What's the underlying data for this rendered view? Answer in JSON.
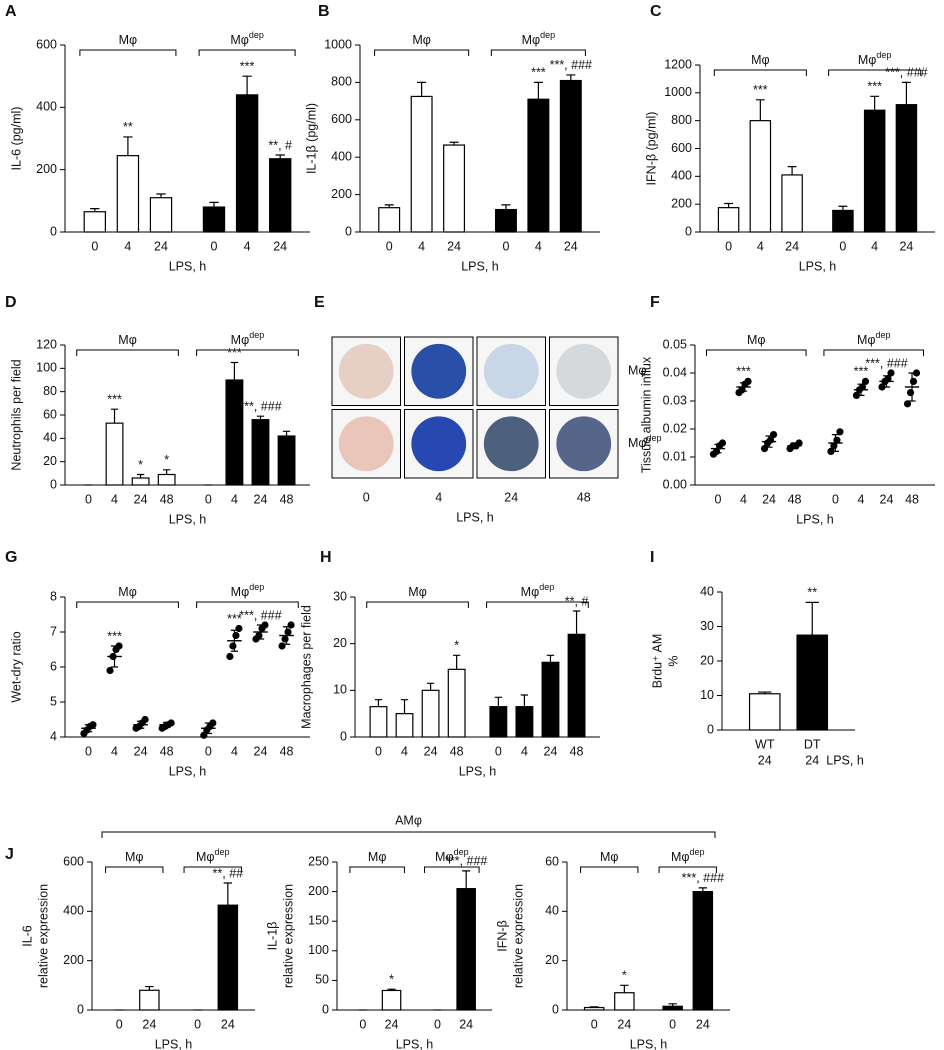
{
  "chart_data": [
    {
      "type": "bar",
      "panel": "A",
      "ylabel": "IL-6 (pg/ml)",
      "xlabel": "LPS, h",
      "ylim": [
        0,
        600
      ],
      "yticks": [
        0,
        200,
        400,
        600
      ],
      "categories": [
        "0",
        "4",
        "24"
      ],
      "series": [
        {
          "name": "Mφ",
          "color": "#ffffff",
          "values": [
            65,
            245,
            110
          ],
          "errors": [
            10,
            60,
            12
          ],
          "annotations": [
            null,
            "**",
            null
          ]
        },
        {
          "name": "Mφ",
          "name_superscript": "dep",
          "color": "#000000",
          "values": [
            80,
            440,
            235
          ],
          "errors": [
            15,
            60,
            12
          ],
          "annotations": [
            null,
            "***",
            "**, #"
          ]
        }
      ]
    },
    {
      "type": "bar",
      "panel": "B",
      "ylabel": "IL-1β (pg/ml)",
      "xlabel": "LPS, h",
      "ylim": [
        0,
        1000
      ],
      "yticks": [
        0,
        200,
        400,
        600,
        800,
        1000
      ],
      "categories": [
        "0",
        "4",
        "24"
      ],
      "series": [
        {
          "name": "Mφ",
          "color": "#ffffff",
          "values": [
            130,
            725,
            465
          ],
          "errors": [
            15,
            75,
            15
          ],
          "annotations": [
            null,
            null,
            null
          ]
        },
        {
          "name": "Mφ",
          "name_superscript": "dep",
          "color": "#000000",
          "values": [
            120,
            710,
            810
          ],
          "errors": [
            25,
            90,
            30
          ],
          "annotations": [
            null,
            "***",
            "***, ###"
          ]
        }
      ]
    },
    {
      "type": "bar",
      "panel": "C",
      "ylabel": "IFN-β (pg/ml)",
      "xlabel": "LPS, h",
      "ylim": [
        0,
        1200
      ],
      "yticks": [
        0,
        200,
        400,
        600,
        800,
        1000,
        1200
      ],
      "categories": [
        "0",
        "4",
        "24"
      ],
      "series": [
        {
          "name": "Mφ",
          "color": "#ffffff",
          "values": [
            175,
            800,
            410
          ],
          "errors": [
            30,
            150,
            60
          ],
          "annotations": [
            null,
            "***",
            null
          ]
        },
        {
          "name": "Mφ",
          "name_superscript": "dep",
          "color": "#000000",
          "values": [
            155,
            875,
            915
          ],
          "errors": [
            30,
            100,
            160
          ],
          "annotations": [
            null,
            "***",
            "***, ###"
          ]
        }
      ]
    },
    {
      "type": "bar",
      "panel": "D",
      "ylabel": "Neutrophils per field",
      "xlabel": "LPS, h",
      "ylim": [
        0,
        120
      ],
      "yticks": [
        0,
        20,
        40,
        60,
        80,
        100,
        120
      ],
      "categories": [
        "0",
        "4",
        "24",
        "48"
      ],
      "series": [
        {
          "name": "Mφ",
          "color": "#ffffff",
          "values": [
            0,
            53,
            6,
            9
          ],
          "errors": [
            0,
            12,
            3,
            4
          ],
          "annotations": [
            null,
            "***",
            "*",
            "*"
          ]
        },
        {
          "name": "Mφ",
          "name_superscript": "dep",
          "color": "#000000",
          "values": [
            0,
            90,
            56,
            42
          ],
          "errors": [
            0,
            15,
            3,
            4
          ],
          "annotations": [
            null,
            "***",
            "***, ###",
            null
          ]
        }
      ]
    },
    {
      "type": "image",
      "panel": "E",
      "xlabel": "LPS, h",
      "categories": [
        "0",
        "4",
        "24",
        "48"
      ],
      "rows": [
        {
          "name": "Mφ"
        },
        {
          "name": "Mφ",
          "name_superscript": "dep"
        }
      ]
    },
    {
      "type": "dot",
      "panel": "F",
      "ylabel": "Tissue albumin influx",
      "xlabel": "LPS, h",
      "ylim": [
        0,
        0.05
      ],
      "yticks": [
        {
          "value": 0,
          "label": "0.00"
        },
        {
          "value": 0.01,
          "label": "0.01"
        },
        {
          "value": 0.02,
          "label": "0.02"
        },
        {
          "value": 0.03,
          "label": "0.03"
        },
        {
          "value": 0.04,
          "label": "0.04"
        },
        {
          "value": 0.05,
          "label": "0.05"
        }
      ],
      "categories": [
        "0",
        "4",
        "24",
        "48"
      ],
      "series": [
        {
          "name": "Mφ",
          "color": "#000000",
          "values": [
            0.013,
            0.035,
            0.0155,
            0.014
          ],
          "errors": [
            0.0015,
            0.0015,
            0.002,
            0.001
          ],
          "points": [
            [
              0.011,
              0.012,
              0.014,
              0.015
            ],
            [
              0.033,
              0.034,
              0.036,
              0.037
            ],
            [
              0.013,
              0.015,
              0.016,
              0.018
            ],
            [
              0.013,
              0.014,
              0.014,
              0.015
            ]
          ],
          "annotations": [
            null,
            "***",
            null,
            null
          ]
        },
        {
          "name": "Mφ",
          "name_superscript": "dep",
          "color": "#000000",
          "values": [
            0.015,
            0.034,
            0.037,
            0.035
          ],
          "errors": [
            0.003,
            0.002,
            0.002,
            0.005
          ],
          "points": [
            [
              0.012,
              0.014,
              0.016,
              0.019
            ],
            [
              0.032,
              0.034,
              0.035,
              0.037
            ],
            [
              0.035,
              0.037,
              0.038,
              0.04
            ],
            [
              0.029,
              0.033,
              0.037,
              0.04
            ]
          ],
          "annotations": [
            null,
            "***",
            "***, ###",
            null
          ]
        }
      ]
    },
    {
      "type": "dot",
      "panel": "G",
      "ylabel": "Wet-dry ratio",
      "xlabel": "LPS, h",
      "ylim": [
        4,
        8
      ],
      "yticks": [
        4,
        5,
        6,
        7,
        8
      ],
      "categories": [
        "0",
        "4",
        "24",
        "48"
      ],
      "series": [
        {
          "name": "Mφ",
          "color": "#000000",
          "values": [
            4.25,
            6.3,
            4.35,
            4.35
          ],
          "errors": [
            0.1,
            0.3,
            0.1,
            0.07
          ],
          "points": [
            [
              4.1,
              4.2,
              4.3,
              4.35
            ],
            [
              5.9,
              6.3,
              6.5,
              6.6
            ],
            [
              4.25,
              4.3,
              4.4,
              4.5
            ],
            [
              4.25,
              4.3,
              4.35,
              4.4
            ]
          ],
          "annotations": [
            null,
            "***",
            null,
            null
          ]
        },
        {
          "name": "Mφ",
          "name_superscript": "dep",
          "color": "#000000",
          "values": [
            4.25,
            6.75,
            7.0,
            6.9
          ],
          "errors": [
            0.15,
            0.3,
            0.2,
            0.25
          ],
          "points": [
            [
              4.05,
              4.2,
              4.3,
              4.4
            ],
            [
              6.3,
              6.6,
              6.9,
              7.1
            ],
            [
              6.8,
              6.9,
              7.1,
              7.2
            ],
            [
              6.6,
              6.8,
              7.0,
              7.2
            ]
          ],
          "annotations": [
            null,
            "***",
            "***, ###",
            null
          ]
        }
      ]
    },
    {
      "type": "bar",
      "panel": "H",
      "ylabel": "Macrophages per field",
      "xlabel": "LPS, h",
      "ylim": [
        0,
        30
      ],
      "yticks": [
        0,
        10,
        20,
        30
      ],
      "categories": [
        "0",
        "4",
        "24",
        "48"
      ],
      "series": [
        {
          "name": "Mφ",
          "color": "#ffffff",
          "values": [
            6.5,
            5,
            10,
            14.5
          ],
          "errors": [
            1.5,
            3,
            1.5,
            3
          ],
          "annotations": [
            null,
            null,
            null,
            "*"
          ]
        },
        {
          "name": "Mφ",
          "name_superscript": "dep",
          "color": "#000000",
          "values": [
            6.5,
            6.5,
            16,
            22
          ],
          "errors": [
            2,
            2.5,
            1.5,
            5
          ],
          "annotations": [
            null,
            null,
            null,
            "**, #"
          ]
        }
      ]
    },
    {
      "type": "bar",
      "panel": "I",
      "ylabel": [
        "Brdu⁺ AM",
        "%"
      ],
      "xlabel": "LPS, h",
      "ylim": [
        0,
        40
      ],
      "yticks": [
        0,
        10,
        20,
        30,
        40
      ],
      "categories": [
        "WT",
        "DT"
      ],
      "x_sublabels": [
        "24",
        "24"
      ],
      "series": [
        {
          "colors": [
            "#ffffff",
            "#000000"
          ],
          "values": [
            10.5,
            27.5
          ],
          "errors": [
            0.5,
            9.5
          ],
          "annotations": [
            null,
            "**"
          ]
        }
      ]
    },
    {
      "type": "bar",
      "panel": "J",
      "group_title": "AMφ",
      "ylabel": [
        "IL-6",
        "relative expression"
      ],
      "xlabel": "LPS, h",
      "ylim": [
        0,
        600
      ],
      "yticks": [
        0,
        200,
        400,
        600
      ],
      "categories": [
        "0",
        "24"
      ],
      "series": [
        {
          "name": "Mφ",
          "color": "#ffffff",
          "values": [
            0,
            80
          ],
          "errors": [
            0,
            15
          ],
          "annotations": [
            null,
            null
          ]
        },
        {
          "name": "Mφ",
          "name_superscript": "dep",
          "color": "#000000",
          "values": [
            0,
            425
          ],
          "errors": [
            0,
            90
          ],
          "annotations": [
            null,
            "**, ##"
          ]
        }
      ]
    },
    {
      "type": "bar",
      "ylabel": [
        "IL-1β",
        "relative expression"
      ],
      "xlabel": "LPS, h",
      "ylim": [
        0,
        250
      ],
      "yticks": [
        0,
        50,
        100,
        150,
        200,
        250
      ],
      "categories": [
        "0",
        "24"
      ],
      "series": [
        {
          "name": "Mφ",
          "color": "#ffffff",
          "values": [
            0,
            33
          ],
          "errors": [
            0,
            2
          ],
          "annotations": [
            null,
            "*"
          ]
        },
        {
          "name": "Mφ",
          "name_superscript": "dep",
          "color": "#000000",
          "values": [
            0,
            205
          ],
          "errors": [
            0,
            30
          ],
          "annotations": [
            null,
            "***, ###"
          ]
        }
      ]
    },
    {
      "type": "bar",
      "ylabel": [
        "IFN-β",
        "relative expression"
      ],
      "xlabel": "LPS, h",
      "ylim": [
        0,
        60
      ],
      "yticks": [
        0,
        20,
        40,
        60
      ],
      "categories": [
        "0",
        "24"
      ],
      "series": [
        {
          "name": "Mφ",
          "color": "#ffffff",
          "values": [
            1,
            7
          ],
          "errors": [
            0.3,
            3
          ],
          "annotations": [
            null,
            "*"
          ]
        },
        {
          "name": "Mφ",
          "name_superscript": "dep",
          "color": "#000000",
          "values": [
            1.5,
            48
          ],
          "errors": [
            1,
            1.5
          ],
          "annotations": [
            null,
            "***, ###"
          ]
        }
      ]
    }
  ]
}
